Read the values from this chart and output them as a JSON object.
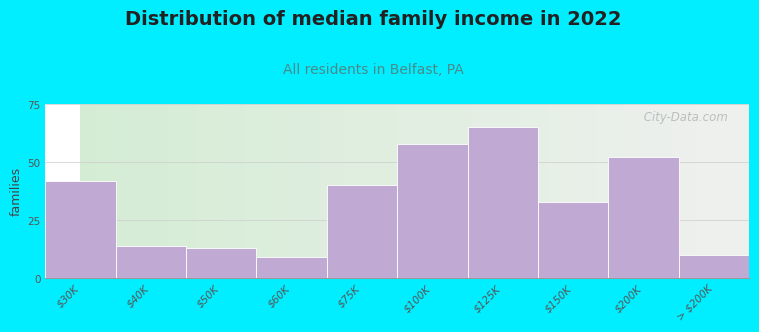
{
  "title": "Distribution of median family income in 2022",
  "subtitle": "All residents in Belfast, PA",
  "ylabel": "families",
  "categories": [
    "$30K",
    "$40K",
    "$50K",
    "$60K",
    "$75K",
    "$100K",
    "$125K",
    "$150K",
    "$200K",
    "> $200K"
  ],
  "values": [
    42,
    14,
    13,
    9,
    40,
    58,
    65,
    33,
    52,
    10
  ],
  "bar_color": "#c0aad4",
  "bar_edgecolor": "#ffffff",
  "ylim": [
    0,
    75
  ],
  "yticks": [
    0,
    25,
    50,
    75
  ],
  "background_outer": "#00eeff",
  "bg_left_color": "#d4ecd4",
  "bg_right_color": "#f0f0f0",
  "title_fontsize": 14,
  "subtitle_fontsize": 10,
  "title_color": "#222222",
  "subtitle_color": "#4a8a8a",
  "watermark": " City-Data.com",
  "watermark_color": "#b0b8b8",
  "ylabel_fontsize": 9,
  "tick_fontsize": 7.5
}
